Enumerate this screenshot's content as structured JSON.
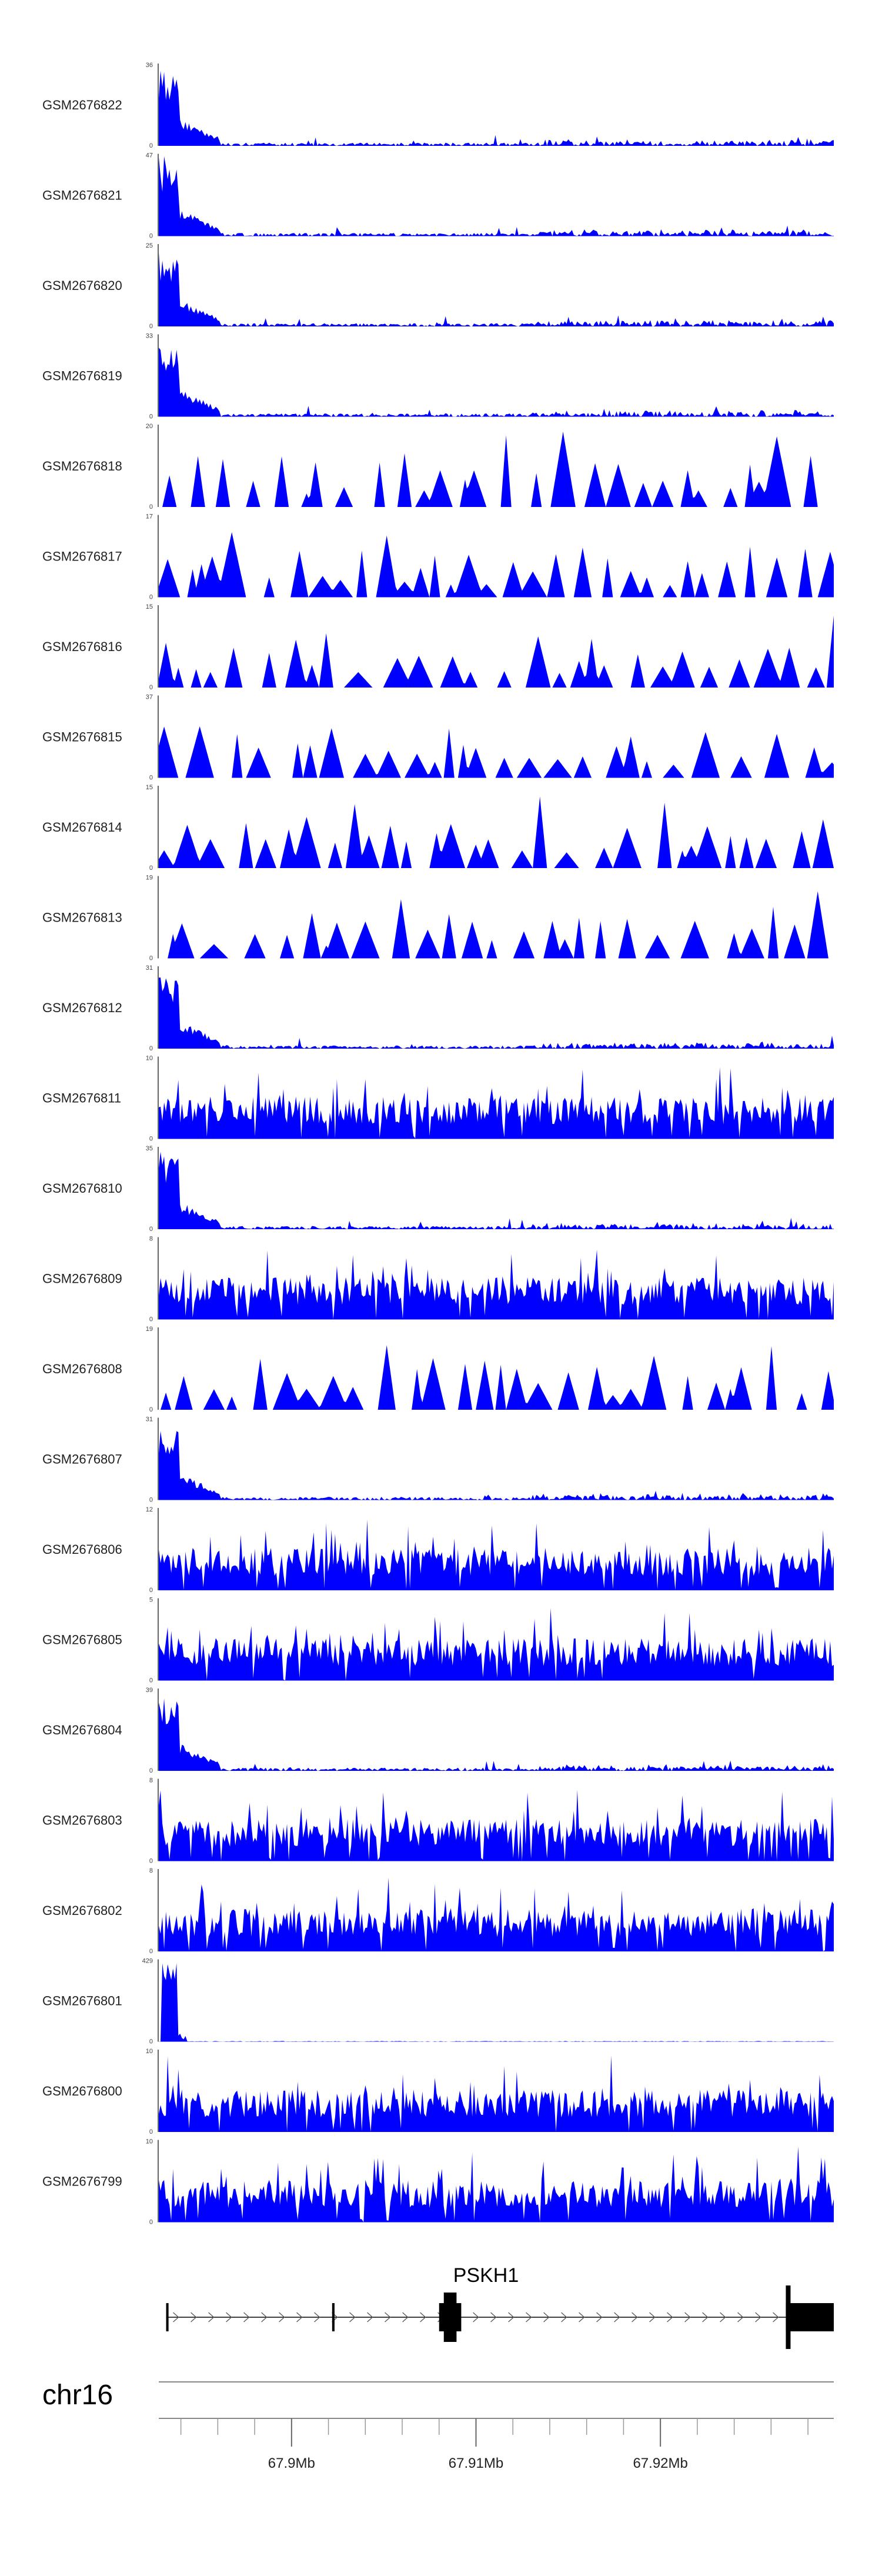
{
  "chart_data": {
    "type": "area",
    "title": "",
    "xlabel": "",
    "ylabel": "",
    "region": {
      "chrom": "chr16",
      "start": 67892800,
      "end": 67929400
    },
    "x_ticks": [
      {
        "pos": 67900000,
        "label": "67.9Mb"
      },
      {
        "pos": 67910000,
        "label": "67.91Mb"
      },
      {
        "pos": 67920000,
        "label": "67.92Mb"
      }
    ],
    "minor_tick_step": 2000,
    "fill_color": "#0000ff",
    "tracks": [
      {
        "name": "GSM2676822",
        "ymax": 36,
        "ymin": 0,
        "profile": "early"
      },
      {
        "name": "GSM2676821",
        "ymax": 47,
        "ymin": 0,
        "profile": "early"
      },
      {
        "name": "GSM2676820",
        "ymax": 25,
        "ymin": 0,
        "profile": "early"
      },
      {
        "name": "GSM2676819",
        "ymax": 33,
        "ymin": 0,
        "profile": "early"
      },
      {
        "name": "GSM2676818",
        "ymax": 20,
        "ymin": 0,
        "profile": "sparse"
      },
      {
        "name": "GSM2676817",
        "ymax": 17,
        "ymin": 0,
        "profile": "sparse"
      },
      {
        "name": "GSM2676816",
        "ymax": 15,
        "ymin": 0,
        "profile": "sparse"
      },
      {
        "name": "GSM2676815",
        "ymax": 37,
        "ymin": 0,
        "profile": "sparse"
      },
      {
        "name": "GSM2676814",
        "ymax": 15,
        "ymin": 0,
        "profile": "sparse"
      },
      {
        "name": "GSM2676813",
        "ymax": 19,
        "ymin": 0,
        "profile": "sparse"
      },
      {
        "name": "GSM2676812",
        "ymax": 31,
        "ymin": 0,
        "profile": "early"
      },
      {
        "name": "GSM2676811",
        "ymax": 10,
        "ymin": 0,
        "profile": "dense"
      },
      {
        "name": "GSM2676810",
        "ymax": 35,
        "ymin": 0,
        "profile": "early"
      },
      {
        "name": "GSM2676809",
        "ymax": 8,
        "ymin": 0,
        "profile": "dense"
      },
      {
        "name": "GSM2676808",
        "ymax": 19,
        "ymin": 0,
        "profile": "sparse"
      },
      {
        "name": "GSM2676807",
        "ymax": 31,
        "ymin": 0,
        "profile": "early"
      },
      {
        "name": "GSM2676806",
        "ymax": 12,
        "ymin": 0,
        "profile": "dense"
      },
      {
        "name": "GSM2676805",
        "ymax": 5,
        "ymin": 0,
        "profile": "dense"
      },
      {
        "name": "GSM2676804",
        "ymax": 39,
        "ymin": 0,
        "profile": "early"
      },
      {
        "name": "GSM2676803",
        "ymax": 8,
        "ymin": 0,
        "profile": "dense"
      },
      {
        "name": "GSM2676802",
        "ymax": 8,
        "ymin": 0,
        "profile": "dense"
      },
      {
        "name": "GSM2676801",
        "ymax": 429,
        "ymin": 0,
        "profile": "spike"
      },
      {
        "name": "GSM2676800",
        "ymax": 10,
        "ymin": 0,
        "profile": "dense"
      },
      {
        "name": "GSM2676799",
        "ymax": 10,
        "ymin": 0,
        "profile": "dense"
      }
    ],
    "gene": {
      "name": "PSKH1",
      "strand": "+",
      "tss": 67893200,
      "tes": 67929400,
      "exons": [
        {
          "start": 67893200,
          "end": 67893330
        },
        {
          "start": 67902200,
          "end": 67902330
        },
        {
          "start": 67908000,
          "end": 67909200,
          "thick": true
        },
        {
          "start": 67926800,
          "end": 67929400,
          "thick": true
        }
      ]
    }
  }
}
